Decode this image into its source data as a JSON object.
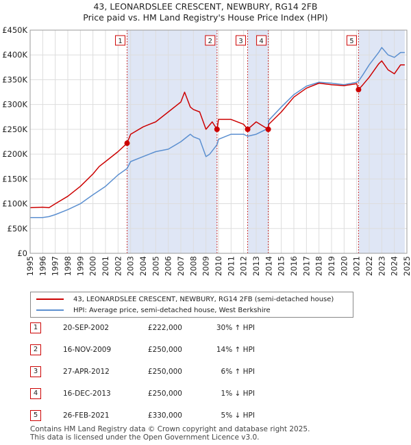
{
  "title": "43, LEONARDSLEE CRESCENT, NEWBURY, RG14 2FB",
  "subtitle": "Price paid vs. HM Land Registry's House Price Index (HPI)",
  "colors": {
    "price": "#cc0000",
    "hpi": "#5b8fd0",
    "band": "#dfe6f5",
    "vline": "#cc3333",
    "grid": "#dddddd"
  },
  "legend": {
    "price_label": "43, LEONARDSLEE CRESCENT, NEWBURY, RG14 2FB (semi-detached house)",
    "hpi_label": "HPI: Average price, semi-detached house, West Berkshire"
  },
  "transactions": [
    {
      "num": "1",
      "date": "20-SEP-2002",
      "price": "£222,000",
      "hpi": "30% ↑ HPI"
    },
    {
      "num": "2",
      "date": "16-NOV-2009",
      "price": "£250,000",
      "hpi": "14% ↑ HPI"
    },
    {
      "num": "3",
      "date": "27-APR-2012",
      "price": "£250,000",
      "hpi": "6% ↑ HPI"
    },
    {
      "num": "4",
      "date": "16-DEC-2013",
      "price": "£250,000",
      "hpi": "1% ↓ HPI"
    },
    {
      "num": "5",
      "date": "26-FEB-2021",
      "price": "£330,000",
      "hpi": "5% ↓ HPI"
    }
  ],
  "footer": {
    "line1": "Contains HM Land Registry data © Crown copyright and database right 2025.",
    "line2": "This data is licensed under the Open Government Licence v3.0."
  },
  "chart_data": {
    "type": "line",
    "title": "43, LEONARDSLEE CRESCENT, NEWBURY, RG14 2FB",
    "subtitle": "Price paid vs. HM Land Registry's House Price Index (HPI)",
    "xlim": [
      1995,
      2025
    ],
    "ylim": [
      0,
      450000
    ],
    "x_ticks": [
      1995,
      1996,
      1997,
      1998,
      1999,
      2000,
      2001,
      2002,
      2003,
      2004,
      2005,
      2006,
      2007,
      2008,
      2009,
      2010,
      2011,
      2012,
      2013,
      2014,
      2015,
      2016,
      2017,
      2018,
      2019,
      2020,
      2021,
      2022,
      2023,
      2024,
      2025
    ],
    "y_ticks": [
      0,
      50000,
      100000,
      150000,
      200000,
      250000,
      300000,
      350000,
      400000,
      450000
    ],
    "y_tick_labels": [
      "£0",
      "£50K",
      "£100K",
      "£150K",
      "£200K",
      "£250K",
      "£300K",
      "£350K",
      "£400K",
      "£450K"
    ],
    "shaded_bands": [
      [
        2002.72,
        2009.88
      ],
      [
        2012.32,
        2013.96
      ],
      [
        2021.15,
        2024.83
      ]
    ],
    "markers": [
      {
        "label": "1",
        "x": 2002.72,
        "y": 222000
      },
      {
        "label": "2",
        "x": 2009.88,
        "y": 250000
      },
      {
        "label": "3",
        "x": 2012.32,
        "y": 250000
      },
      {
        "label": "4",
        "x": 2013.96,
        "y": 250000
      },
      {
        "label": "5",
        "x": 2021.15,
        "y": 330000
      }
    ],
    "series": [
      {
        "name": "43, LEONARDSLEE CRESCENT, NEWBURY, RG14 2FB (semi-detached house)",
        "color": "#cc0000",
        "x": [
          1995,
          1996,
          1996.5,
          1997,
          1998,
          1999,
          2000,
          2000.5,
          2001,
          2002,
          2002.72,
          2003,
          2004,
          2004.5,
          2005,
          2006,
          2007,
          2007.3,
          2007.75,
          2008,
          2008.5,
          2009,
          2009.5,
          2009.88,
          2010,
          2011,
          2012,
          2012.32,
          2013,
          2013.96,
          2014,
          2015,
          2016,
          2017,
          2018,
          2019,
          2020,
          2021,
          2021.15,
          2021.5,
          2022,
          2022.75,
          2023,
          2023.5,
          2024,
          2024.5,
          2024.83
        ],
        "y": [
          92000,
          93000,
          92000,
          100000,
          115000,
          135000,
          160000,
          175000,
          185000,
          205000,
          222000,
          240000,
          255000,
          260000,
          265000,
          285000,
          305000,
          325000,
          295000,
          290000,
          285000,
          250000,
          265000,
          250000,
          270000,
          270000,
          260000,
          250000,
          265000,
          250000,
          260000,
          285000,
          315000,
          333000,
          343000,
          340000,
          338000,
          342000,
          330000,
          340000,
          355000,
          382000,
          388000,
          370000,
          362000,
          380000,
          380000
        ]
      },
      {
        "name": "HPI: Average price, semi-detached house, West Berkshire",
        "color": "#5b8fd0",
        "x": [
          1995,
          1996,
          1996.5,
          1997,
          1998,
          1999,
          2000,
          2001,
          2002,
          2002.72,
          2003,
          2004,
          2004.5,
          2005,
          2006,
          2007,
          2007.75,
          2008,
          2008.5,
          2009,
          2009.3,
          2009.88,
          2010,
          2011,
          2012,
          2012.32,
          2013,
          2013.96,
          2014,
          2015,
          2016,
          2017,
          2018,
          2019,
          2020,
          2021,
          2021.15,
          2021.5,
          2022,
          2022.75,
          2023,
          2023.5,
          2024,
          2024.5,
          2024.83
        ],
        "y": [
          72000,
          72000,
          74000,
          78000,
          88000,
          100000,
          118000,
          135000,
          158000,
          171000,
          185000,
          195000,
          200000,
          205000,
          210000,
          225000,
          240000,
          235000,
          230000,
          195000,
          200000,
          219000,
          230000,
          240000,
          240000,
          236000,
          240000,
          252000,
          268000,
          295000,
          320000,
          337000,
          345000,
          343000,
          340000,
          345000,
          347000,
          360000,
          380000,
          405000,
          415000,
          400000,
          395000,
          405000,
          405000
        ]
      }
    ]
  }
}
